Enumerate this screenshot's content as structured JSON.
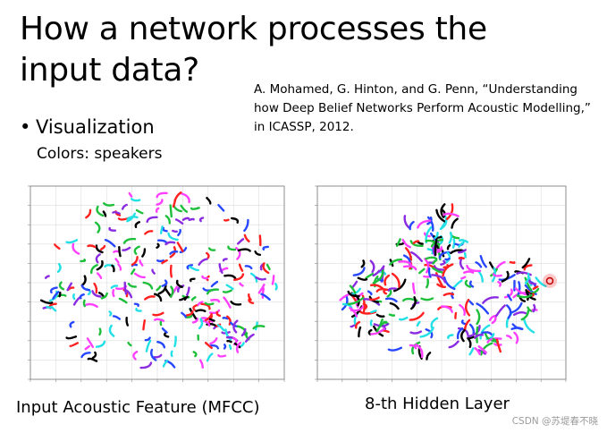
{
  "slide": {
    "title": "How a network processes the input data?",
    "citation": "A. Mohamed, G. Hinton, and G. Penn, “Understanding how Deep Belief Networks Perform Acoustic Modelling,” in ICASSP, 2012.",
    "bullet": "Visualization",
    "sub_bullet": "Colors: speakers",
    "watermark": "CSDN @苏堤春不晓"
  },
  "plots": [
    {
      "caption": "Input Acoustic Feature (MFCC)",
      "pattern": "scattered short strokes",
      "colors": [
        "#ff2020",
        "#1dbf3a",
        "#2747ff",
        "#ff3fff",
        "#22e0e6",
        "#000000",
        "#8a2be2"
      ]
    },
    {
      "caption": "8-th Hidden Layer",
      "pattern": "clustered curves",
      "colors": [
        "#ff2020",
        "#1dbf3a",
        "#2747ff",
        "#ff3fff",
        "#22e0e6",
        "#000000",
        "#8a2be2"
      ]
    }
  ]
}
